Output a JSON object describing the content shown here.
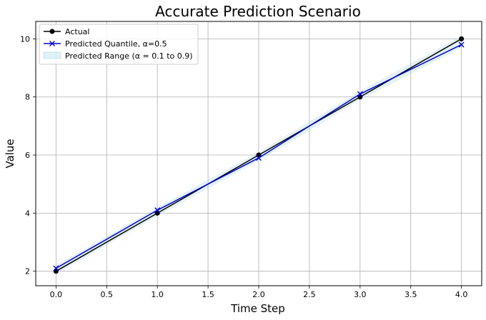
{
  "chart_data": {
    "type": "line",
    "title": "Accurate Prediction Scenario",
    "xlabel": "Time Step",
    "ylabel": "Value",
    "xlim": [
      -0.2,
      4.2
    ],
    "ylim": [
      1.5,
      10.6
    ],
    "xticks": [
      "0.0",
      "0.5",
      "1.0",
      "1.5",
      "2.0",
      "2.5",
      "3.0",
      "3.5",
      "4.0"
    ],
    "yticks": [
      "2",
      "4",
      "6",
      "8",
      "10"
    ],
    "grid": true,
    "legend_position": "top-left",
    "x": [
      0,
      1,
      2,
      3,
      4
    ],
    "series": [
      {
        "name": "Actual",
        "values": [
          2,
          4,
          6,
          8,
          10
        ],
        "color": "#000000",
        "marker": "circle"
      },
      {
        "name": "Predicted Quantile, α=0.5",
        "values": [
          2.1,
          4.1,
          5.9,
          8.1,
          9.8
        ],
        "color": "#0000cc",
        "marker": "x"
      }
    ],
    "band": {
      "name": "Predicted Range (α = 0.1 to 0.9)",
      "lower": [
        1.9,
        3.9,
        5.8,
        7.9,
        9.7
      ],
      "upper": [
        2.2,
        4.2,
        6.1,
        8.2,
        10.1
      ],
      "color": "#add8e6"
    }
  }
}
